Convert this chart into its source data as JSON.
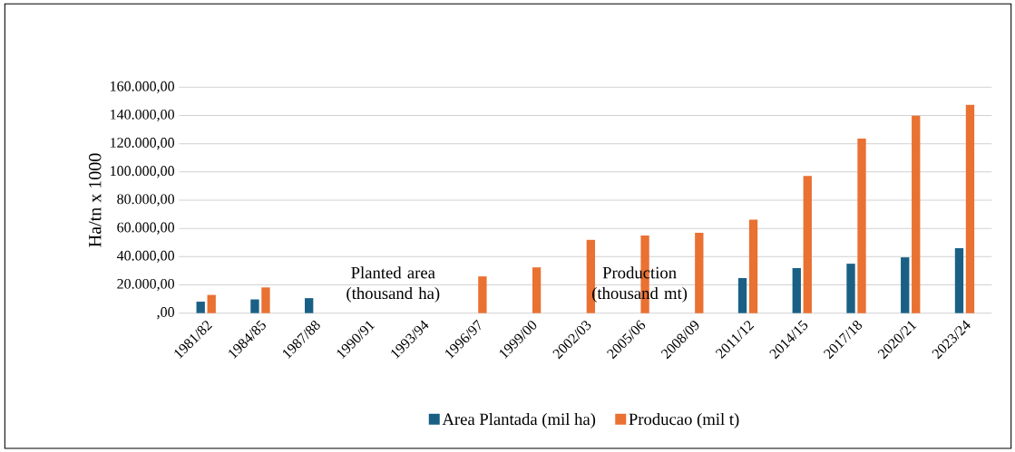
{
  "chart_data": {
    "type": "bar",
    "ylabel": "Ha/tn x 1000",
    "categories": [
      "1981/82",
      "1984/85",
      "1987/88",
      "1990/91",
      "1993/94",
      "1996/97",
      "1999/00",
      "2002/03",
      "2005/06",
      "2008/09",
      "2011/12",
      "2014/15",
      "2017/18",
      "2020/21",
      "2023/24"
    ],
    "series": [
      {
        "name": "Area Plantada (mil ha)",
        "color": "#1a6085",
        "values": [
          8100,
          9700,
          10600,
          null,
          null,
          null,
          null,
          null,
          null,
          null,
          24800,
          31900,
          35000,
          39500,
          46000
        ]
      },
      {
        "name": "Producao (mil t)",
        "color": "#e97132",
        "values": [
          12900,
          18200,
          null,
          null,
          null,
          26000,
          32400,
          51900,
          55000,
          56900,
          66200,
          97100,
          123600,
          139800,
          147600
        ]
      }
    ],
    "ylim": [
      0,
      160000
    ],
    "yticks": [
      {
        "value": 0,
        "label": ",00"
      },
      {
        "value": 20000,
        "label": "20.000,00"
      },
      {
        "value": 40000,
        "label": "40.000,00"
      },
      {
        "value": 60000,
        "label": "60.000,00"
      },
      {
        "value": 80000,
        "label": "80.000,00"
      },
      {
        "value": 100000,
        "label": "100.000,00"
      },
      {
        "value": 120000,
        "label": "120.000,00"
      },
      {
        "value": 140000,
        "label": "140.000,00"
      },
      {
        "value": 160000,
        "label": "160.000,00"
      }
    ],
    "grid": "y",
    "legend": "bottom",
    "annotations": [
      "Planted area\n(thousand ha)",
      "Production\n(thousand mt)"
    ]
  }
}
